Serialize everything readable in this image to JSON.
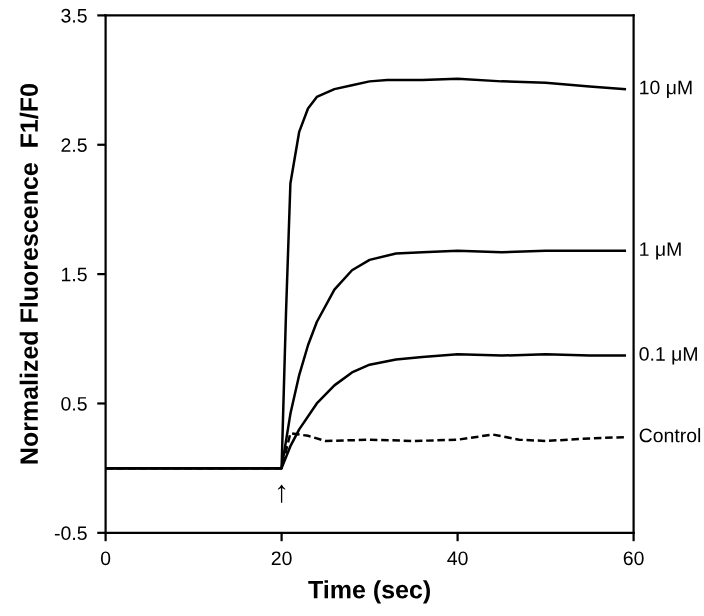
{
  "chart_data": {
    "type": "line",
    "xlabel": "Time (sec)",
    "ylabel": "Normalized Fluorescence  F1/F0",
    "xlim": [
      0,
      60
    ],
    "ylim": [
      -0.5,
      3.5
    ],
    "xticks": [
      0,
      20,
      40,
      60
    ],
    "yticks": [
      -0.5,
      0.5,
      1.5,
      2.5,
      3.5
    ],
    "grid": false,
    "legend": false,
    "series": [
      {
        "name": "10 μM",
        "color": "#000000",
        "line_style": "solid",
        "x": [
          0,
          10,
          20,
          20.5,
          21,
          22,
          23,
          24,
          26,
          28,
          30,
          32,
          36,
          40,
          45,
          50,
          55,
          59
        ],
        "values": [
          0,
          0,
          0,
          1.2,
          2.2,
          2.6,
          2.78,
          2.87,
          2.93,
          2.96,
          2.99,
          3.0,
          3.0,
          3.01,
          2.99,
          2.98,
          2.95,
          2.93
        ]
      },
      {
        "name": "1 μM",
        "color": "#000000",
        "line_style": "solid",
        "x": [
          0,
          10,
          20,
          21,
          22,
          23,
          24,
          26,
          28,
          30,
          33,
          36,
          40,
          45,
          50,
          55,
          59
        ],
        "values": [
          0,
          0,
          0,
          0.42,
          0.72,
          0.95,
          1.13,
          1.38,
          1.53,
          1.61,
          1.66,
          1.67,
          1.68,
          1.67,
          1.68,
          1.68,
          1.68
        ]
      },
      {
        "name": "0.1 μM",
        "color": "#000000",
        "line_style": "solid",
        "x": [
          0,
          10,
          20,
          21,
          22,
          24,
          26,
          28,
          30,
          33,
          36,
          40,
          45,
          50,
          55,
          59
        ],
        "values": [
          0,
          0,
          0,
          0.17,
          0.3,
          0.5,
          0.64,
          0.74,
          0.8,
          0.84,
          0.86,
          0.88,
          0.87,
          0.88,
          0.87,
          0.87
        ]
      },
      {
        "name": "Control",
        "color": "#000000",
        "line_style": "dashed",
        "x": [
          0,
          10,
          20,
          21,
          23,
          25,
          30,
          35,
          40,
          44,
          47,
          50,
          55,
          59
        ],
        "values": [
          0,
          0,
          0,
          0.27,
          0.25,
          0.21,
          0.22,
          0.21,
          0.22,
          0.26,
          0.22,
          0.21,
          0.23,
          0.24
        ]
      }
    ],
    "annotations": [
      "↑"
    ]
  }
}
